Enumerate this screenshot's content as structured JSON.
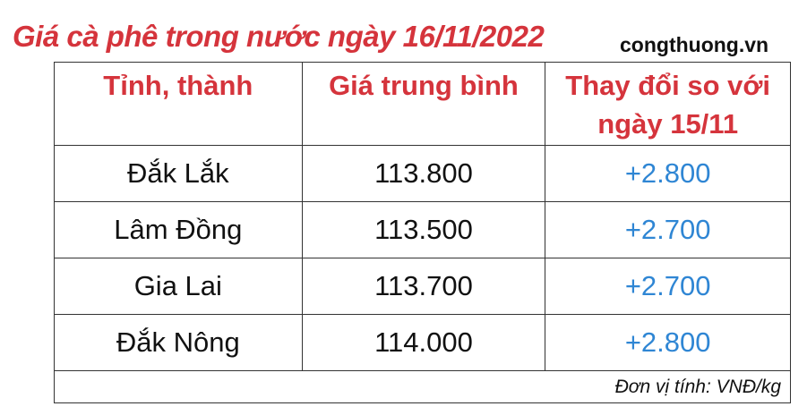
{
  "title": "Giá cà phê trong nước ngày 16/11/2022",
  "source": "congthuong.vn",
  "colors": {
    "header_red": "#d5343c",
    "change_blue": "#2f86d4"
  },
  "table": {
    "headers": [
      "Tỉnh, thành",
      "Giá trung bình",
      "Thay đổi so với ngày 15/11"
    ],
    "rows": [
      {
        "province": "Đắk Lắk",
        "price": "113.800",
        "change": "+2.800"
      },
      {
        "province": "Lâm Đồng",
        "price": "113.500",
        "change": "+2.700"
      },
      {
        "province": "Gia Lai",
        "price": "113.700",
        "change": "+2.700"
      },
      {
        "province": "Đắk Nông",
        "price": "114.000",
        "change": "+2.800"
      }
    ],
    "unit_note": "Đơn vị tính: VNĐ/kg"
  }
}
